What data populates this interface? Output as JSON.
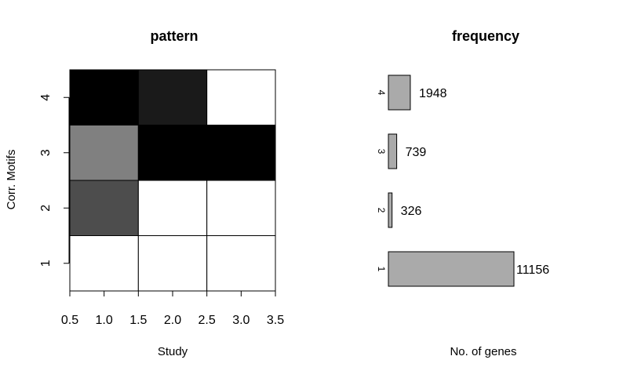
{
  "chart_data": [
    {
      "type": "heatmap",
      "title": "pattern",
      "xlabel": "Study",
      "ylabel": "Corr. Motifs",
      "xlim": [
        0.5,
        3.5
      ],
      "ylim": [
        0.5,
        4.5
      ],
      "x_ticks": [
        "0.5",
        "1.0",
        "1.5",
        "2.0",
        "2.5",
        "3.0",
        "3.5"
      ],
      "y_ticks": [
        "1",
        "2",
        "3",
        "4"
      ],
      "colorscale": "grayscale (black = high, white = low)",
      "cells": [
        {
          "x": 1,
          "y": 1,
          "color": "#ffffff"
        },
        {
          "x": 2,
          "y": 1,
          "color": "#ffffff"
        },
        {
          "x": 3,
          "y": 1,
          "color": "#ffffff"
        },
        {
          "x": 1,
          "y": 2,
          "color": "#4d4d4d"
        },
        {
          "x": 2,
          "y": 2,
          "color": "#ffffff"
        },
        {
          "x": 3,
          "y": 2,
          "color": "#ffffff"
        },
        {
          "x": 1,
          "y": 3,
          "color": "#808080"
        },
        {
          "x": 2,
          "y": 3,
          "color": "#000000"
        },
        {
          "x": 3,
          "y": 3,
          "color": "#000000"
        },
        {
          "x": 1,
          "y": 4,
          "color": "#000000"
        },
        {
          "x": 2,
          "y": 4,
          "color": "#1a1a1a"
        },
        {
          "x": 3,
          "y": 4,
          "color": "#ffffff"
        }
      ]
    },
    {
      "type": "bar",
      "orientation": "horizontal",
      "title": "frequency",
      "xlabel": "No. of genes",
      "ylabel": "",
      "categories": [
        "1",
        "2",
        "3",
        "4"
      ],
      "values": [
        11156,
        326,
        739,
        1948
      ],
      "data_labels": [
        "11156",
        "326",
        "739",
        "1948"
      ],
      "bar_color": "#aaaaaa",
      "xlim": [
        0,
        11156
      ]
    }
  ]
}
